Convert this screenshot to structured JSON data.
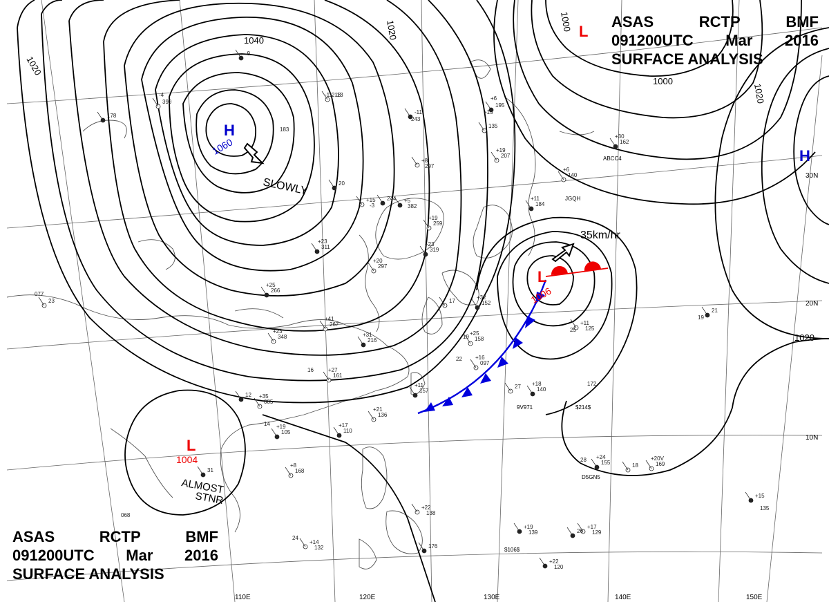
{
  "header": {
    "line1": [
      "ASAS",
      "RCTP",
      "BMF"
    ],
    "line2": [
      "091200UTC",
      "Mar",
      "2016"
    ],
    "line3": "SURFACE ANALYSIS"
  },
  "footer": {
    "line1": [
      "ASAS",
      "RCTP",
      "BMF"
    ],
    "line2": [
      "091200UTC",
      "Mar",
      "2016"
    ],
    "line3": "SURFACE ANALYSIS"
  },
  "colors": {
    "isobar": "#000000",
    "high": "#0000cc",
    "low": "#ee0000",
    "cold_front": "#0000dd",
    "warm_front": "#ee0000",
    "coast": "#444444",
    "grid": "#555555"
  },
  "isobar_labels": [
    "1040",
    "1020",
    "1020",
    "1020",
    "1000",
    "1000",
    "1020",
    "1020"
  ],
  "pressure_systems": {
    "high_nw": {
      "symbol": "H",
      "value": "1060",
      "motion": "SLOWLY",
      "color": "blue"
    },
    "high_east": {
      "symbol": "H",
      "color": "blue"
    },
    "low_northeast": {
      "symbol": "L",
      "color": "red"
    },
    "low_center": {
      "symbol": "L",
      "value": "1006",
      "motion": "35km/hr",
      "color": "red"
    },
    "low_southwest": {
      "symbol": "L",
      "value": "1004",
      "motion_line1": "ALMOST",
      "motion_line2": "STNR",
      "color": "red"
    }
  },
  "latitude_labels": [
    "30N",
    "20N",
    "10N"
  ],
  "longitude_labels": [
    "110E",
    "120E",
    "130E",
    "140E",
    "150E"
  ],
  "station_annotations": [
    "ABCC4",
    "JGQH",
    "9V971",
    "D5GN5",
    "$214$",
    "$106$"
  ],
  "station_values": [
    "178",
    "183",
    "399",
    "-4",
    "-9",
    "-11",
    "218",
    "-13",
    "-11",
    "243",
    "+8",
    "297",
    "+5",
    "382",
    "+15",
    "-3",
    "244",
    "+19",
    "259",
    "+23",
    "319",
    "+20",
    "297",
    "+25",
    "266",
    "+23",
    "348",
    "+23",
    "311",
    "+41",
    "267",
    "+31",
    "216",
    "+27",
    "161",
    "+11",
    "157",
    "+21",
    "136",
    "+17",
    "110",
    "+35",
    "085",
    "+19",
    "105",
    "+8",
    "168",
    "+24",
    "155",
    "+20V",
    "169",
    "+18",
    "140",
    "172",
    "+11",
    "125",
    "+19",
    "139",
    "+17",
    "129",
    "+22",
    "120",
    "+14",
    "132",
    "+15",
    "135",
    "+22",
    "138",
    "176",
    "+15",
    "135",
    "+6",
    "195",
    "+19",
    "207",
    "+11",
    "184",
    "+6",
    "140",
    "+30",
    "162",
    "+25",
    "158",
    "+32",
    "152",
    "+16",
    "097",
    "068",
    "31",
    "077",
    "23",
    "19",
    "21",
    "25",
    "27",
    "28",
    "26",
    "24",
    "18",
    "14",
    "12",
    "16",
    "17",
    "19",
    "20",
    "22"
  ]
}
